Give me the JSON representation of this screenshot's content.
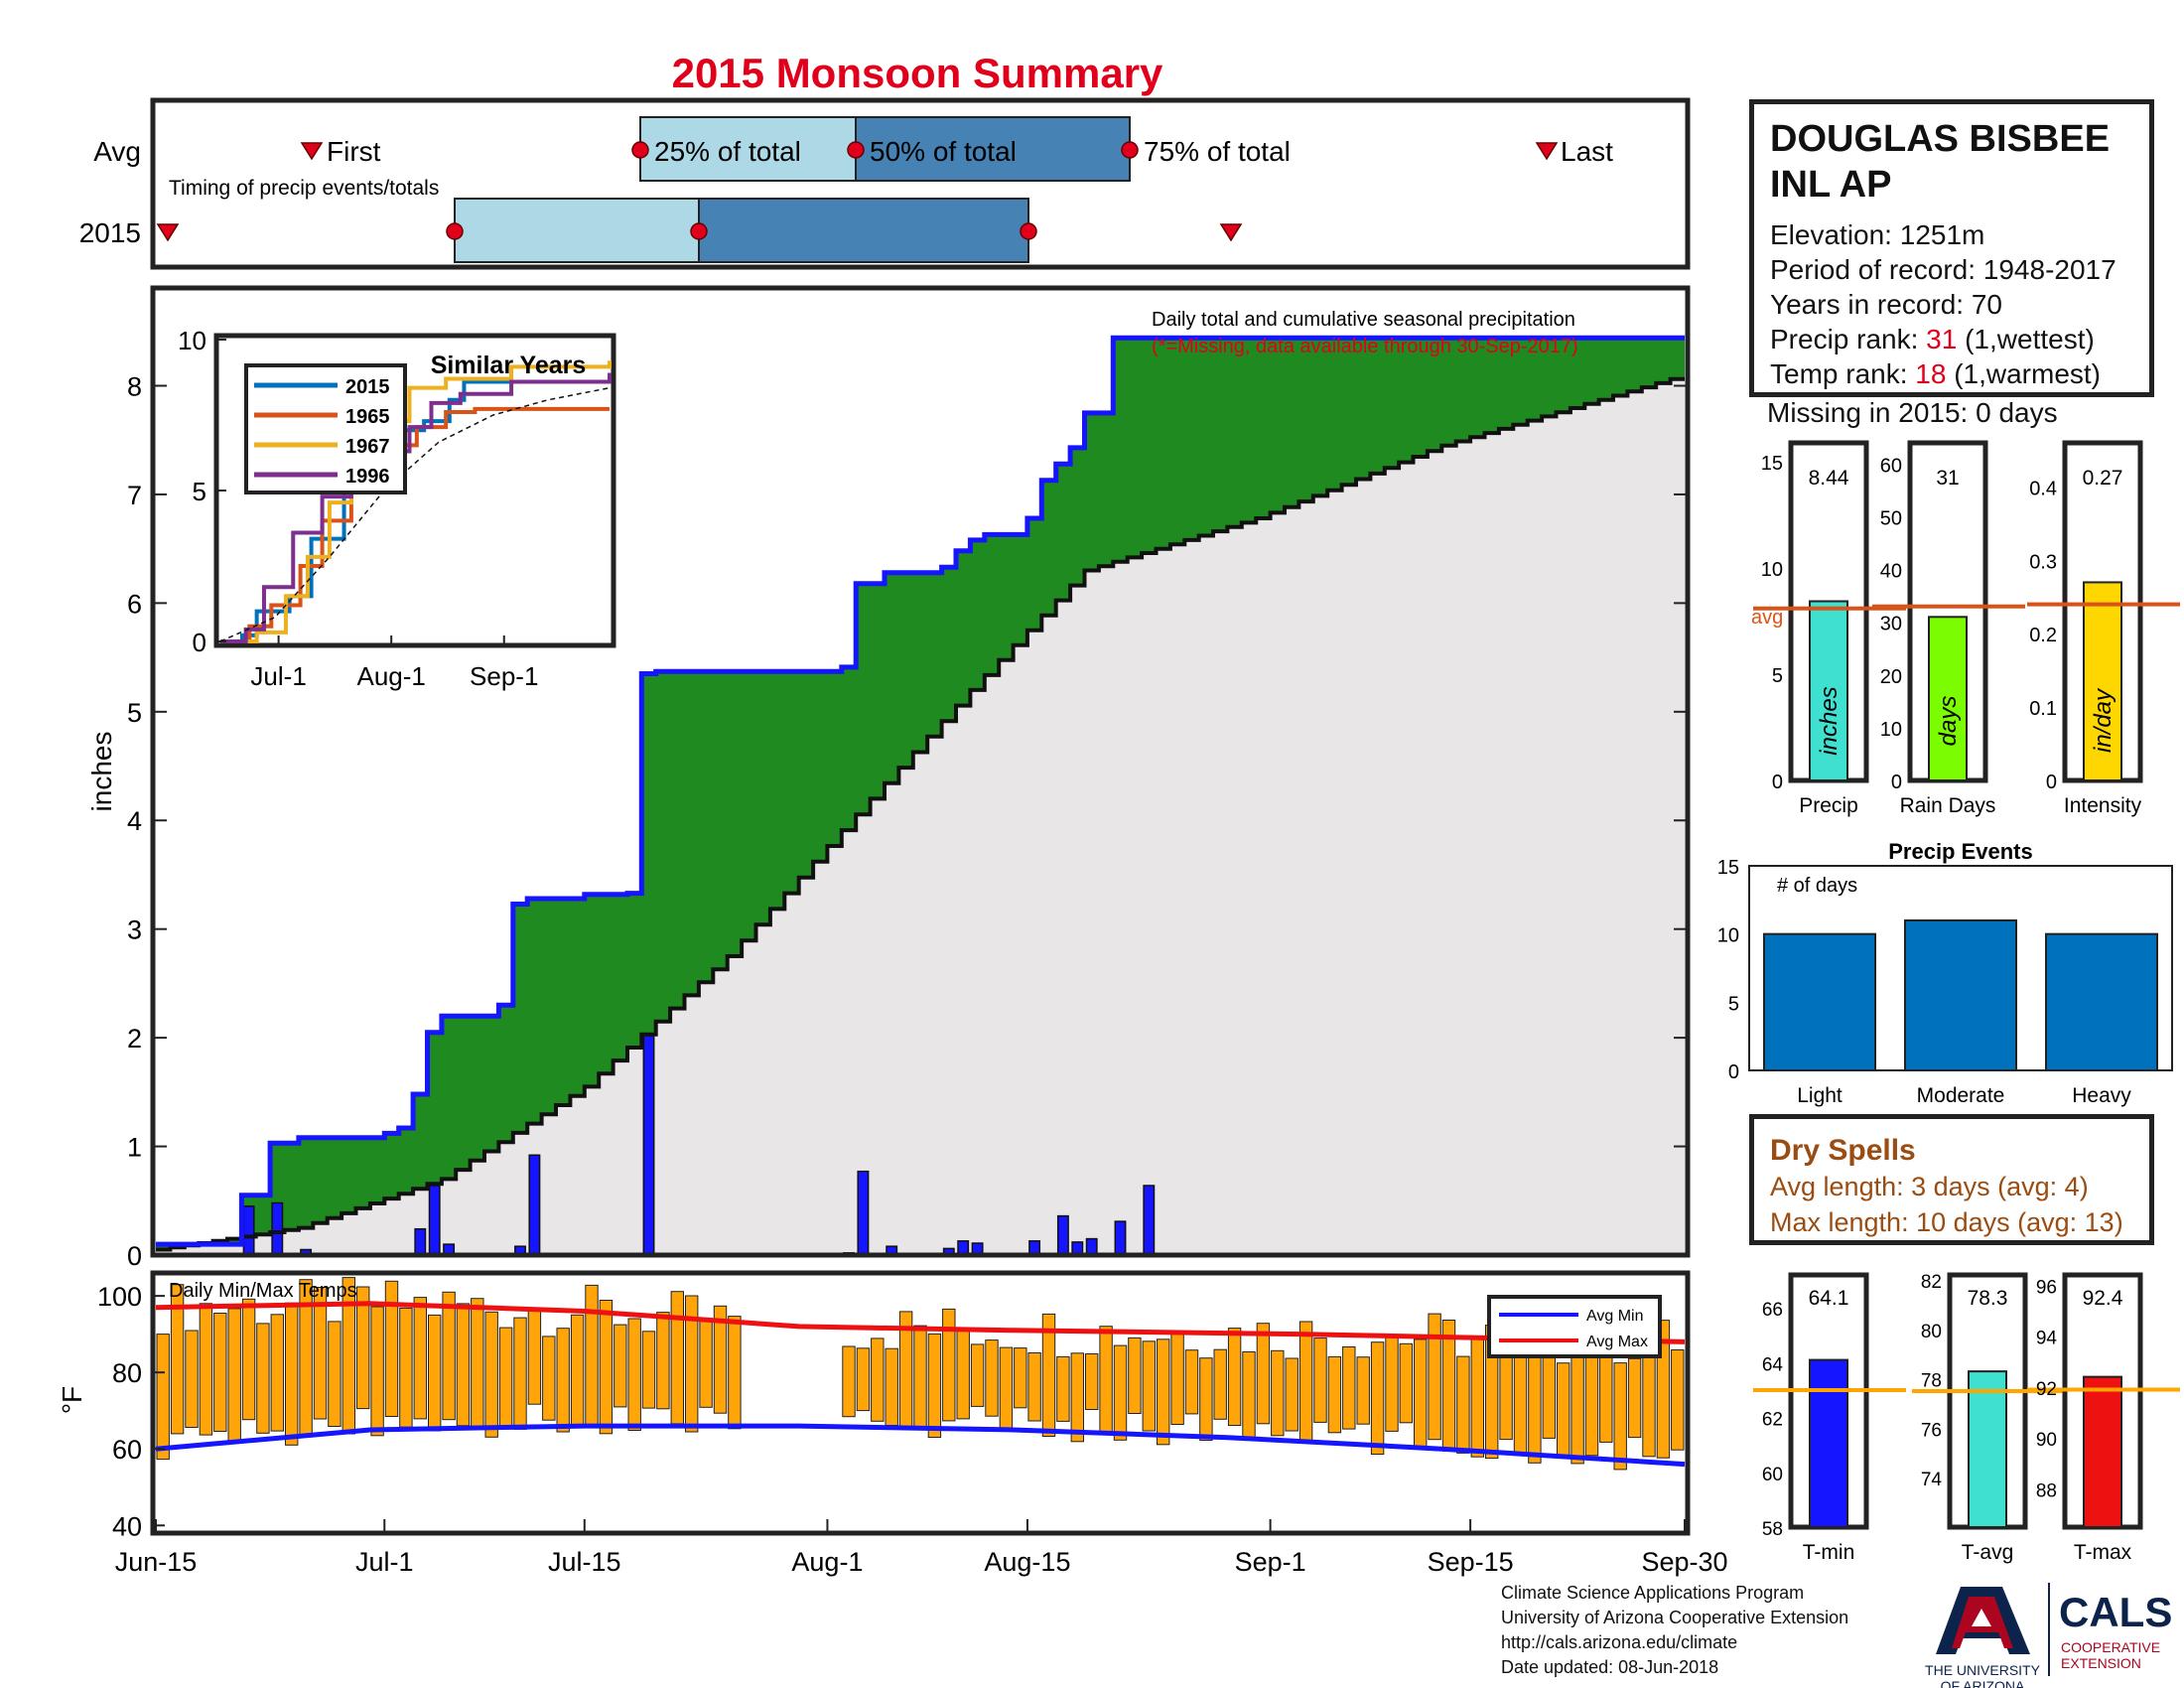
{
  "title": "2015 Monsoon Summary",
  "timing": {
    "label": "Timing of precip events/totals",
    "rows": [
      "Avg",
      "2015"
    ],
    "first_label": "First",
    "last_label": "Last",
    "q25_label": "25% of total",
    "q50_label": "50% of total",
    "q75_label": "75% of total"
  },
  "station": {
    "name_line1": "DOUGLAS BISBEE",
    "name_line2": "INL AP",
    "elevation_label": "Elevation: ",
    "elevation": "1251m",
    "period_label": "Period of record: ",
    "period": "1948-2017",
    "years_label": "Years in record: ",
    "years": "70",
    "precip_rank_label": "Precip rank: ",
    "precip_rank": "31",
    "precip_rank_note": " (1,wettest)",
    "temp_rank_label": "Temp rank: ",
    "temp_rank": "18",
    "temp_rank_note": " (1,warmest)",
    "missing": "Missing in 2015: 0 days"
  },
  "dry_spells": {
    "title": "Dry Spells",
    "avg": "Avg length: 3 days (avg: 4)",
    "max": "Max length: 10 days (avg: 13)"
  },
  "credits": {
    "line1": "Climate Science Applications Program",
    "line2": "University of Arizona Cooperative Extension",
    "line3": "http://cals.arizona.edu/climate",
    "line4": " Date updated: 08-Jun-2018"
  },
  "logos": {
    "ua_line1": "THE UNIVERSITY",
    "ua_line2": "OF ARIZONA",
    "cals": "CALS",
    "cals_sub1": "COOPERATIVE",
    "cals_sub2": "EXTENSION"
  },
  "colors": {
    "green": "#1f8a1f",
    "grey": "#e8e6e6",
    "blue": "#1515ff",
    "orange": "#ffa50a",
    "red": "#ee1111",
    "lightblue": "#add8e6",
    "steel": "#4682b4"
  },
  "chart_data": [
    {
      "type": "area",
      "title": "Daily total and cumulative seasonal precipitation",
      "subtitle": "(*=Missing, data available through 30-Sep-2017)",
      "ylabel": "inches",
      "ylim": [
        0,
        8.9
      ],
      "yticks": [
        0,
        1,
        2,
        3,
        4,
        5,
        6,
        7,
        8
      ],
      "xticks": [
        "Jun-15",
        "Jul-1",
        "Jul-15",
        "Aug-1",
        "Aug-15",
        "Sep-1",
        "Sep-15",
        "Sep-30"
      ],
      "cumulative_2015_steps": [
        [
          0,
          0.1
        ],
        [
          6,
          0.55
        ],
        [
          8,
          1.03
        ],
        [
          10,
          1.08
        ],
        [
          16,
          1.12
        ],
        [
          17,
          1.17
        ],
        [
          18,
          1.48
        ],
        [
          19,
          2.05
        ],
        [
          20,
          2.2
        ],
        [
          24,
          2.3
        ],
        [
          25,
          3.23
        ],
        [
          26,
          3.28
        ],
        [
          30,
          3.32
        ],
        [
          33,
          3.33
        ],
        [
          34,
          5.35
        ],
        [
          35,
          5.37
        ],
        [
          48,
          5.41
        ],
        [
          49,
          6.18
        ],
        [
          51,
          6.28
        ],
        [
          55,
          6.33
        ],
        [
          56,
          6.48
        ],
        [
          57,
          6.58
        ],
        [
          58,
          6.63
        ],
        [
          61,
          6.78
        ],
        [
          62,
          7.13
        ],
        [
          63,
          7.28
        ],
        [
          64,
          7.43
        ],
        [
          65,
          7.75
        ],
        [
          67,
          8.44
        ]
      ],
      "cumulative_avg": [
        [
          0,
          0.05
        ],
        [
          10,
          0.25
        ],
        [
          20,
          0.7
        ],
        [
          30,
          1.55
        ],
        [
          40,
          2.75
        ],
        [
          50,
          4.2
        ],
        [
          57,
          5.2
        ],
        [
          65,
          6.3
        ],
        [
          77,
          6.78
        ],
        [
          90,
          7.45
        ],
        [
          107,
          8.1
        ]
      ],
      "daily_2015": [
        [
          6,
          0.45
        ],
        [
          8,
          0.48
        ],
        [
          10,
          0.05
        ],
        [
          18,
          0.24
        ],
        [
          19,
          0.64
        ],
        [
          20,
          0.1
        ],
        [
          25,
          0.08
        ],
        [
          26,
          0.92
        ],
        [
          34,
          2.02
        ],
        [
          38,
          0.01
        ],
        [
          48,
          0.02
        ],
        [
          49,
          0.77
        ],
        [
          51,
          0.08
        ],
        [
          55,
          0.06
        ],
        [
          56,
          0.13
        ],
        [
          57,
          0.11
        ],
        [
          61,
          0.13
        ],
        [
          63,
          0.36
        ],
        [
          64,
          0.12
        ],
        [
          65,
          0.15
        ],
        [
          67,
          0.31
        ],
        [
          69,
          0.64
        ]
      ]
    },
    {
      "type": "line",
      "title": "Similar Years",
      "ylim": [
        0,
        10
      ],
      "yticks": [
        0,
        5,
        10
      ],
      "xticks": [
        "Jul-1",
        "Aug-1",
        "Sep-1"
      ],
      "series": [
        {
          "name": "2015",
          "color": "#0072bd"
        },
        {
          "name": "1965",
          "color": "#d95319"
        },
        {
          "name": "1967",
          "color": "#edb120"
        },
        {
          "name": "1996",
          "color": "#7e2f8e"
        }
      ]
    },
    {
      "type": "bar",
      "title": "Daily Min/Max Temps",
      "ylabel": "°F",
      "ylim": [
        38,
        106
      ],
      "yticks": [
        40,
        60,
        80,
        100
      ],
      "legend": [
        "Avg Min",
        "Avg Max"
      ],
      "avg_max": [
        [
          0,
          97
        ],
        [
          15,
          98
        ],
        [
          30,
          96
        ],
        [
          45,
          92
        ],
        [
          60,
          91
        ],
        [
          80,
          90
        ],
        [
          107,
          88
        ]
      ],
      "avg_min": [
        [
          0,
          60
        ],
        [
          15,
          65
        ],
        [
          30,
          66
        ],
        [
          45,
          66
        ],
        [
          60,
          65
        ],
        [
          75,
          63
        ],
        [
          90,
          60
        ],
        [
          107,
          56
        ]
      ]
    },
    {
      "type": "bar",
      "categories": [
        "Precip",
        "Rain Days",
        "Intensity"
      ],
      "values": [
        8.44,
        31,
        0.27
      ],
      "value_labels": [
        "8.44",
        "31",
        "0.27"
      ],
      "averages": [
        8.1,
        33,
        0.24
      ],
      "bar_texts": [
        "inches",
        "days",
        "in/day"
      ],
      "avg_label": "avg"
    },
    {
      "type": "bar",
      "title": "Precip Events",
      "ylabel": "# of days",
      "categories": [
        "Light",
        "Moderate",
        "Heavy"
      ],
      "values": [
        10,
        11,
        10
      ],
      "ylim": [
        0,
        15
      ],
      "yticks": [
        0,
        5,
        10,
        15
      ]
    },
    {
      "type": "bar",
      "categories": [
        "T-min",
        "T-avg",
        "T-max"
      ],
      "values": [
        64.1,
        78.3,
        92.4
      ],
      "value_labels": [
        "64.1",
        "78.3",
        "92.4"
      ],
      "averages": [
        63.0,
        77.5,
        91.9
      ]
    }
  ]
}
